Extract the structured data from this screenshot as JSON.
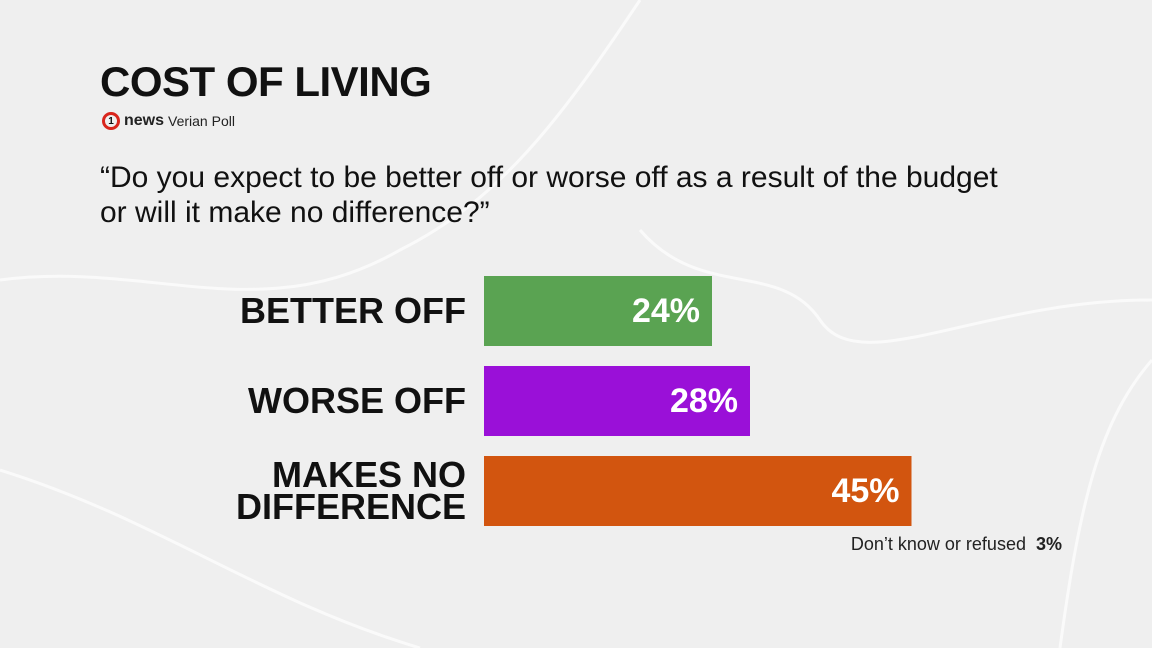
{
  "chart_data": {
    "type": "bar",
    "title": "COST OF LIVING",
    "logo_mark": "1",
    "logo": "news",
    "source": "Verian Poll",
    "subtitle": "“Do you expect to be better off or worse off as a result of the budget or will it make no difference?”",
    "categories": [
      "BETTER OFF",
      "WORSE OFF",
      "MAKES NO DIFFERENCE"
    ],
    "values": [
      24,
      28,
      45
    ],
    "value_labels": [
      "24%",
      "28%",
      "45%"
    ],
    "colors": [
      "#5aa352",
      "#9a10d8",
      "#d2550f"
    ],
    "footnote": {
      "text": "Don’t know or refused",
      "value": "3%"
    }
  }
}
